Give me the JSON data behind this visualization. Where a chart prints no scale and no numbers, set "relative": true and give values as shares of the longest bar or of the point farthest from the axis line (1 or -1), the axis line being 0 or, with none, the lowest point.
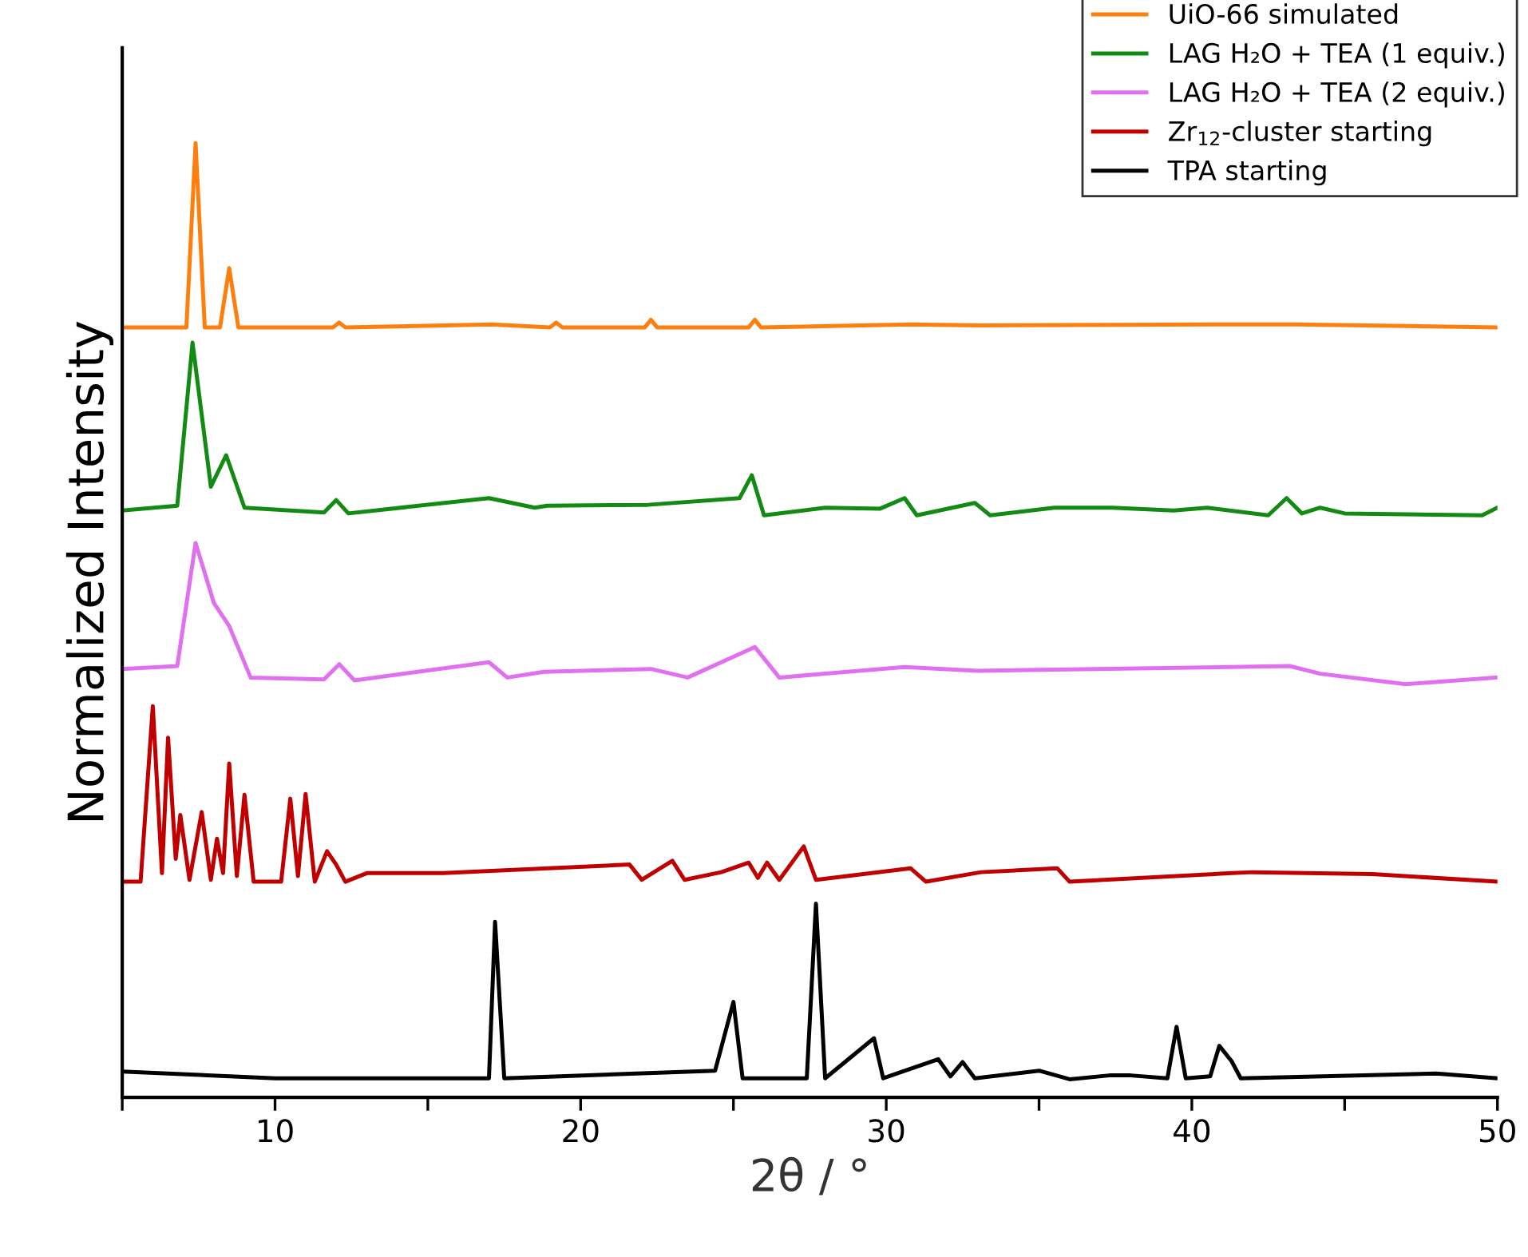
{
  "chart_data": {
    "type": "line",
    "relative": true,
    "xlabel": "2θ / °",
    "ylabel": "Normalized Intensity",
    "xlim": [
      5,
      50
    ],
    "xticks": [
      {
        "value": 5,
        "label": null
      },
      10,
      {
        "value": 15,
        "label": null
      },
      20,
      {
        "value": 25,
        "label": null
      },
      30,
      {
        "value": 35,
        "label": null
      },
      40,
      {
        "value": 45,
        "label": null
      },
      50
    ],
    "legend": "top right",
    "grid": false,
    "marker": "none",
    "line_style": "solid",
    "tick_labels": "x",
    "series": [
      {
        "name": "UiO-66 simulated",
        "color": "#ff7f0e",
        "x": [
          5,
          7.1,
          7.4,
          7.7,
          8.2,
          8.5,
          8.8,
          11.9,
          12.1,
          12.3,
          17.1,
          19.0,
          19.2,
          19.4,
          22.1,
          22.3,
          22.5,
          25.5,
          25.7,
          25.9,
          30.8,
          33.1,
          40.8,
          43.4,
          50
        ],
        "values": [
          0.807,
          0.807,
          1.0,
          0.807,
          0.807,
          0.869,
          0.807,
          0.807,
          0.812,
          0.807,
          0.81,
          0.807,
          0.812,
          0.807,
          0.807,
          0.815,
          0.807,
          0.807,
          0.815,
          0.807,
          0.81,
          0.809,
          0.81,
          0.81,
          0.807
        ]
      },
      {
        "name": "LAG H₂O + TEA (1 equiv.)",
        "color": "#138a13",
        "x": [
          5,
          6.8,
          7.3,
          7.9,
          8.4,
          9.0,
          11.6,
          12.0,
          12.4,
          17.0,
          18.5,
          18.9,
          22.2,
          25.2,
          25.6,
          26.0,
          28.0,
          29.8,
          30.6,
          31.0,
          32.9,
          33.4,
          35.5,
          37.4,
          39.4,
          40.5,
          42.5,
          43.1,
          43.6,
          44.2,
          45,
          49.5,
          50
        ],
        "values": [
          0.615,
          0.62,
          0.791,
          0.64,
          0.673,
          0.618,
          0.613,
          0.626,
          0.612,
          0.628,
          0.618,
          0.62,
          0.621,
          0.628,
          0.652,
          0.61,
          0.618,
          0.617,
          0.628,
          0.61,
          0.623,
          0.61,
          0.618,
          0.618,
          0.615,
          0.618,
          0.61,
          0.628,
          0.612,
          0.618,
          0.612,
          0.61,
          0.618
        ]
      },
      {
        "name": "LAG H₂O + TEA (2 equiv.)",
        "color": "#e070f0",
        "x": [
          5,
          6.8,
          7.4,
          8.0,
          8.5,
          9.2,
          11.6,
          12.1,
          12.6,
          17.0,
          17.6,
          18.8,
          22.3,
          23.5,
          25.7,
          26.5,
          30.6,
          33.0,
          43.2,
          44.2,
          47,
          50
        ],
        "values": [
          0.449,
          0.452,
          0.581,
          0.518,
          0.494,
          0.44,
          0.438,
          0.454,
          0.437,
          0.456,
          0.44,
          0.446,
          0.449,
          0.44,
          0.472,
          0.44,
          0.451,
          0.447,
          0.452,
          0.444,
          0.433,
          0.44
        ]
      },
      {
        "name": "Zr$_{12}$-cluster starting",
        "color": "#c00000",
        "x": [
          5,
          5.6,
          6.0,
          6.3,
          6.5,
          6.75,
          6.9,
          7.2,
          7.6,
          7.9,
          8.1,
          8.3,
          8.5,
          8.75,
          9.0,
          9.3,
          10.2,
          10.5,
          10.75,
          11.0,
          11.3,
          11.7,
          12.0,
          12.3,
          13.0,
          15.5,
          21.6,
          22.0,
          23.0,
          23.4,
          24.6,
          25.5,
          25.8,
          26.1,
          26.5,
          27.3,
          27.7,
          30.8,
          31.3,
          33.1,
          35.6,
          36.0,
          41.3,
          42.0,
          45.9,
          50
        ],
        "values": [
          0.226,
          0.226,
          0.41,
          0.235,
          0.377,
          0.25,
          0.296,
          0.228,
          0.299,
          0.228,
          0.271,
          0.235,
          0.35,
          0.232,
          0.317,
          0.226,
          0.226,
          0.313,
          0.232,
          0.318,
          0.226,
          0.258,
          0.244,
          0.226,
          0.235,
          0.235,
          0.244,
          0.228,
          0.248,
          0.228,
          0.236,
          0.246,
          0.23,
          0.246,
          0.228,
          0.263,
          0.228,
          0.24,
          0.226,
          0.236,
          0.24,
          0.226,
          0.235,
          0.236,
          0.234,
          0.226
        ]
      },
      {
        "name": "TPA starting",
        "color": "#000000",
        "x": [
          5,
          10,
          17.0,
          17.2,
          17.5,
          24.4,
          25.0,
          25.3,
          27.4,
          27.7,
          28.0,
          29.6,
          29.9,
          31.7,
          32.1,
          32.5,
          32.9,
          35.0,
          36,
          37.3,
          38,
          39.2,
          39.5,
          39.8,
          40.6,
          40.9,
          41.3,
          41.6,
          48,
          50
        ],
        "values": [
          0.027,
          0.02,
          0.02,
          0.184,
          0.02,
          0.028,
          0.1,
          0.02,
          0.02,
          0.203,
          0.02,
          0.062,
          0.02,
          0.04,
          0.022,
          0.037,
          0.02,
          0.028,
          0.019,
          0.023,
          0.023,
          0.02,
          0.074,
          0.02,
          0.022,
          0.054,
          0.038,
          0.02,
          0.025,
          0.02
        ]
      }
    ]
  }
}
